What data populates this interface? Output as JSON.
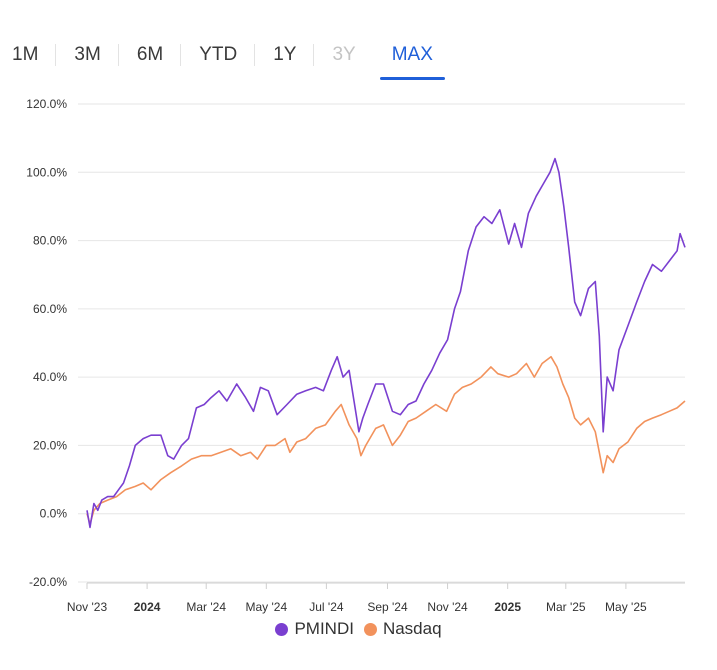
{
  "range_tabs": [
    {
      "label": "1M",
      "state": "normal"
    },
    {
      "label": "3M",
      "state": "normal"
    },
    {
      "label": "6M",
      "state": "normal"
    },
    {
      "label": "YTD",
      "state": "normal"
    },
    {
      "label": "1Y",
      "state": "normal"
    },
    {
      "label": "3Y",
      "state": "disabled"
    },
    {
      "label": "MAX",
      "state": "active"
    }
  ],
  "colors": {
    "active_tab": "#1f5fd9",
    "pmindi": "#7a3fd0",
    "nasdaq": "#f2925c",
    "grid": "#e6e6e6"
  },
  "chart_data": {
    "type": "line",
    "ylim": [
      -20,
      120
    ],
    "y_ticks": [
      -20,
      0,
      20,
      40,
      60,
      80,
      100,
      120
    ],
    "y_tick_labels": [
      "-20.0%",
      "0.0%",
      "20.0%",
      "40.0%",
      "60.0%",
      "80.0%",
      "100.0%",
      "120.0%"
    ],
    "x_range": [
      "2023-11-01",
      "2025-06-30"
    ],
    "x_ticks": [
      "2023-11-01",
      "2024-01-01",
      "2024-03-01",
      "2024-05-01",
      "2024-07-01",
      "2024-09-01",
      "2024-11-01",
      "2025-01-01",
      "2025-03-01",
      "2025-05-01"
    ],
    "x_tick_labels": [
      "Nov '23",
      "2024",
      "Mar '24",
      "May '24",
      "Jul '24",
      "Sep '24",
      "Nov '24",
      "2025",
      "Mar '25",
      "May '25"
    ],
    "bold_x_ticks": [
      "2024",
      "2025"
    ],
    "grid": true,
    "legend_position": "bottom-center",
    "series": [
      {
        "name": "PMINDI",
        "color": "#7a3fd0",
        "points": [
          [
            "2023-11-01",
            1
          ],
          [
            "2023-11-04",
            -4
          ],
          [
            "2023-11-08",
            3
          ],
          [
            "2023-11-12",
            1
          ],
          [
            "2023-11-16",
            4
          ],
          [
            "2023-11-22",
            5
          ],
          [
            "2023-11-28",
            5
          ],
          [
            "2023-12-03",
            7
          ],
          [
            "2023-12-08",
            9
          ],
          [
            "2023-12-14",
            14
          ],
          [
            "2023-12-20",
            20
          ],
          [
            "2023-12-28",
            22
          ],
          [
            "2024-01-05",
            23
          ],
          [
            "2024-01-15",
            23
          ],
          [
            "2024-01-22",
            17
          ],
          [
            "2024-01-28",
            16
          ],
          [
            "2024-02-05",
            20
          ],
          [
            "2024-02-12",
            22
          ],
          [
            "2024-02-20",
            31
          ],
          [
            "2024-02-28",
            32
          ],
          [
            "2024-03-06",
            34
          ],
          [
            "2024-03-14",
            36
          ],
          [
            "2024-03-22",
            33
          ],
          [
            "2024-04-01",
            38
          ],
          [
            "2024-04-10",
            34
          ],
          [
            "2024-04-18",
            30
          ],
          [
            "2024-04-25",
            37
          ],
          [
            "2024-05-03",
            36
          ],
          [
            "2024-05-12",
            29
          ],
          [
            "2024-05-22",
            32
          ],
          [
            "2024-06-01",
            35
          ],
          [
            "2024-06-10",
            36
          ],
          [
            "2024-06-20",
            37
          ],
          [
            "2024-06-28",
            36
          ],
          [
            "2024-07-06",
            42
          ],
          [
            "2024-07-12",
            46
          ],
          [
            "2024-07-18",
            40
          ],
          [
            "2024-07-24",
            42
          ],
          [
            "2024-07-29",
            33
          ],
          [
            "2024-08-03",
            24
          ],
          [
            "2024-08-07",
            28
          ],
          [
            "2024-08-12",
            32
          ],
          [
            "2024-08-20",
            38
          ],
          [
            "2024-08-28",
            38
          ],
          [
            "2024-09-06",
            30
          ],
          [
            "2024-09-14",
            29
          ],
          [
            "2024-09-22",
            32
          ],
          [
            "2024-09-30",
            33
          ],
          [
            "2024-10-08",
            38
          ],
          [
            "2024-10-16",
            42
          ],
          [
            "2024-10-24",
            47
          ],
          [
            "2024-11-01",
            51
          ],
          [
            "2024-11-08",
            60
          ],
          [
            "2024-11-14",
            65
          ],
          [
            "2024-11-22",
            77
          ],
          [
            "2024-11-30",
            84
          ],
          [
            "2024-12-08",
            87
          ],
          [
            "2024-12-16",
            85
          ],
          [
            "2024-12-24",
            89
          ],
          [
            "2025-01-02",
            79
          ],
          [
            "2025-01-08",
            85
          ],
          [
            "2025-01-15",
            78
          ],
          [
            "2025-01-22",
            88
          ],
          [
            "2025-01-30",
            93
          ],
          [
            "2025-02-07",
            97
          ],
          [
            "2025-02-13",
            100
          ],
          [
            "2025-02-18",
            104
          ],
          [
            "2025-02-22",
            100
          ],
          [
            "2025-02-27",
            90
          ],
          [
            "2025-03-04",
            78
          ],
          [
            "2025-03-10",
            62
          ],
          [
            "2025-03-16",
            58
          ],
          [
            "2025-03-24",
            66
          ],
          [
            "2025-03-31",
            68
          ],
          [
            "2025-04-04",
            52
          ],
          [
            "2025-04-08",
            24
          ],
          [
            "2025-04-12",
            40
          ],
          [
            "2025-04-18",
            36
          ],
          [
            "2025-04-24",
            48
          ],
          [
            "2025-05-03",
            55
          ],
          [
            "2025-05-12",
            62
          ],
          [
            "2025-05-20",
            68
          ],
          [
            "2025-05-28",
            73
          ],
          [
            "2025-06-06",
            71
          ],
          [
            "2025-06-14",
            74
          ],
          [
            "2025-06-22",
            77
          ],
          [
            "2025-06-25",
            82
          ],
          [
            "2025-06-30",
            78
          ]
        ]
      },
      {
        "name": "Nasdaq",
        "color": "#f2925c",
        "points": [
          [
            "2023-11-01",
            0
          ],
          [
            "2023-11-04",
            -3
          ],
          [
            "2023-11-08",
            1
          ],
          [
            "2023-11-14",
            3
          ],
          [
            "2023-11-22",
            4
          ],
          [
            "2023-12-01",
            5
          ],
          [
            "2023-12-10",
            7
          ],
          [
            "2023-12-20",
            8
          ],
          [
            "2023-12-28",
            9
          ],
          [
            "2024-01-05",
            7
          ],
          [
            "2024-01-15",
            10
          ],
          [
            "2024-01-25",
            12
          ],
          [
            "2024-02-05",
            14
          ],
          [
            "2024-02-15",
            16
          ],
          [
            "2024-02-25",
            17
          ],
          [
            "2024-03-06",
            17
          ],
          [
            "2024-03-16",
            18
          ],
          [
            "2024-03-26",
            19
          ],
          [
            "2024-04-05",
            17
          ],
          [
            "2024-04-15",
            18
          ],
          [
            "2024-04-22",
            16
          ],
          [
            "2024-05-01",
            20
          ],
          [
            "2024-05-10",
            20
          ],
          [
            "2024-05-20",
            22
          ],
          [
            "2024-05-25",
            18
          ],
          [
            "2024-06-01",
            21
          ],
          [
            "2024-06-10",
            22
          ],
          [
            "2024-06-20",
            25
          ],
          [
            "2024-06-30",
            26
          ],
          [
            "2024-07-10",
            30
          ],
          [
            "2024-07-16",
            32
          ],
          [
            "2024-07-24",
            26
          ],
          [
            "2024-08-01",
            22
          ],
          [
            "2024-08-05",
            17
          ],
          [
            "2024-08-10",
            20
          ],
          [
            "2024-08-20",
            25
          ],
          [
            "2024-08-28",
            26
          ],
          [
            "2024-09-06",
            20
          ],
          [
            "2024-09-14",
            23
          ],
          [
            "2024-09-22",
            27
          ],
          [
            "2024-09-30",
            28
          ],
          [
            "2024-10-10",
            30
          ],
          [
            "2024-10-20",
            32
          ],
          [
            "2024-10-31",
            30
          ],
          [
            "2024-11-08",
            35
          ],
          [
            "2024-11-16",
            37
          ],
          [
            "2024-11-25",
            38
          ],
          [
            "2024-12-05",
            40
          ],
          [
            "2024-12-15",
            43
          ],
          [
            "2024-12-22",
            41
          ],
          [
            "2025-01-02",
            40
          ],
          [
            "2025-01-10",
            41
          ],
          [
            "2025-01-20",
            44
          ],
          [
            "2025-01-28",
            40
          ],
          [
            "2025-02-05",
            44
          ],
          [
            "2025-02-14",
            46
          ],
          [
            "2025-02-20",
            43
          ],
          [
            "2025-02-26",
            38
          ],
          [
            "2025-03-04",
            34
          ],
          [
            "2025-03-10",
            28
          ],
          [
            "2025-03-16",
            26
          ],
          [
            "2025-03-24",
            28
          ],
          [
            "2025-03-31",
            24
          ],
          [
            "2025-04-04",
            18
          ],
          [
            "2025-04-08",
            12
          ],
          [
            "2025-04-12",
            17
          ],
          [
            "2025-04-18",
            15
          ],
          [
            "2025-04-24",
            19
          ],
          [
            "2025-05-03",
            21
          ],
          [
            "2025-05-12",
            25
          ],
          [
            "2025-05-20",
            27
          ],
          [
            "2025-05-28",
            28
          ],
          [
            "2025-06-06",
            29
          ],
          [
            "2025-06-14",
            30
          ],
          [
            "2025-06-22",
            31
          ],
          [
            "2025-06-30",
            33
          ]
        ]
      }
    ]
  }
}
